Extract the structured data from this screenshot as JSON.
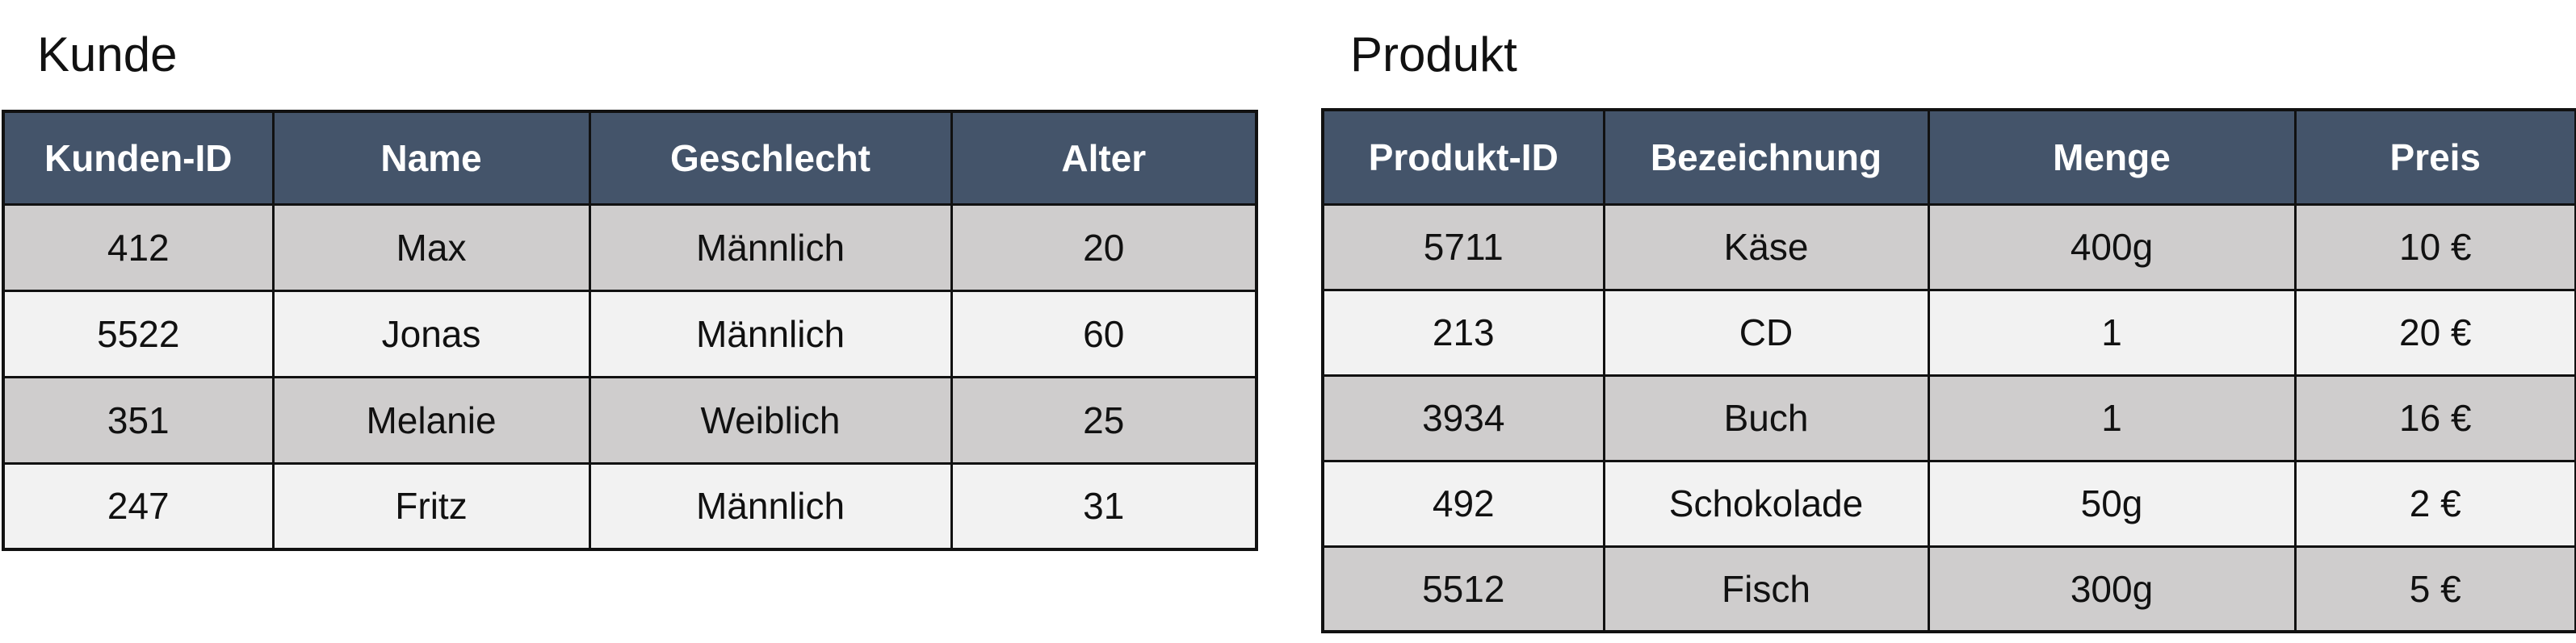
{
  "kunde": {
    "title": "Kunde",
    "headers": [
      "Kunden-ID",
      "Name",
      "Geschlecht",
      "Alter"
    ],
    "rows": [
      [
        "412",
        "Max",
        "Männlich",
        "20"
      ],
      [
        "5522",
        "Jonas",
        "Männlich",
        "60"
      ],
      [
        "351",
        "Melanie",
        "Weiblich",
        "25"
      ],
      [
        "247",
        "Fritz",
        "Männlich",
        "31"
      ]
    ]
  },
  "produkt": {
    "title": "Produkt",
    "headers": [
      "Produkt-ID",
      "Bezeichnung",
      "Menge",
      "Preis"
    ],
    "rows": [
      [
        "5711",
        "Käse",
        "400g",
        "10 €"
      ],
      [
        "213",
        "CD",
        "1",
        "20 €"
      ],
      [
        "3934",
        "Buch",
        "1",
        "16 €"
      ],
      [
        "492",
        "Schokolade",
        "50g",
        "2 €"
      ],
      [
        "5512",
        "Fisch",
        "300g",
        "5 €"
      ]
    ]
  },
  "colors": {
    "header_bg": "#44546a",
    "header_text": "#ffffff",
    "row_dark": "#cfcdcd",
    "row_light": "#f2f2f2",
    "border": "#111111"
  }
}
